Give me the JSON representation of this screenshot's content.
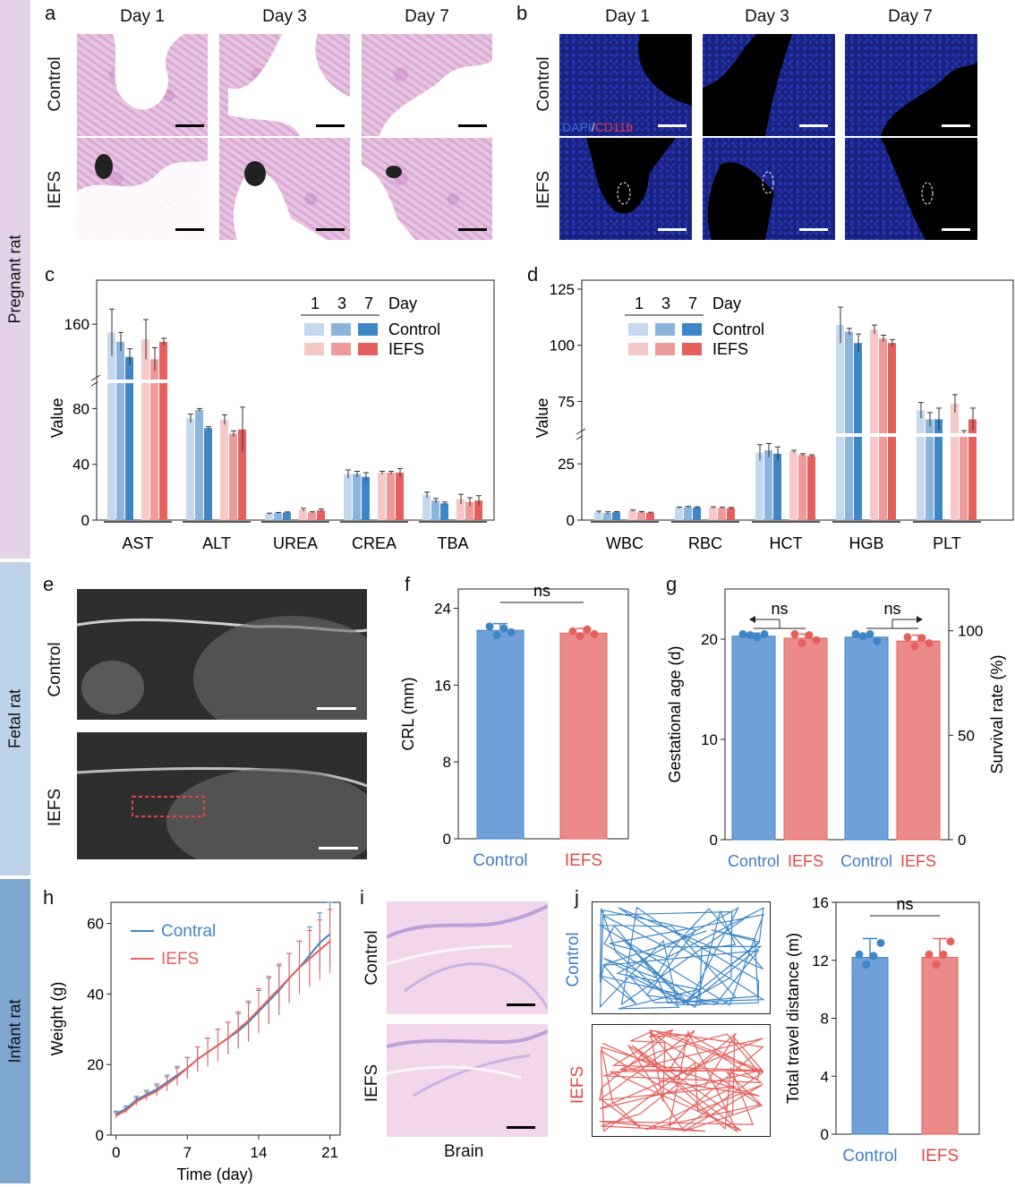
{
  "sections": {
    "pregnant": "Pregnant rat",
    "fetal": "Fetal rat",
    "infant": "Infant rat"
  },
  "panel_a": {
    "label": "a",
    "cols": [
      "Day 1",
      "Day 3",
      "Day 7"
    ],
    "rows": [
      "Control",
      "IEFS"
    ]
  },
  "panel_b": {
    "label": "b",
    "cols": [
      "Day 1",
      "Day 3",
      "Day 7"
    ],
    "rows": [
      "Control",
      "IEFS"
    ],
    "stain_dapi": "DAPI",
    "stain_sep": "/",
    "stain_cd11b": "CD11b"
  },
  "panel_e": {
    "label": "e",
    "rows": [
      "Control",
      "IEFS"
    ]
  },
  "panel_i": {
    "label": "i",
    "rows": [
      "Control",
      "IEFS"
    ],
    "caption": "Brain"
  },
  "panel_j_tracks": {
    "label": "j",
    "rows": [
      "Control",
      "IEFS"
    ]
  },
  "colors": {
    "control": [
      "#c5d9ee",
      "#8db4dd",
      "#3f86c6"
    ],
    "iefs": [
      "#f6c8c8",
      "#ee9a9a",
      "#e5605c"
    ],
    "control_bar": "#6fa0d8",
    "iefs_bar": "#ec8a8a",
    "control_text": "#3f7fc4",
    "iefs_text": "#e04a4a"
  },
  "chart_data": [
    {
      "id": "c",
      "label": "c",
      "type": "bar",
      "ylabel": "Value",
      "yticks_lower": [
        "0",
        "40",
        "80"
      ],
      "yticks_upper": [
        "160"
      ],
      "broken_axis": {
        "lower": [
          0,
          95
        ],
        "upper": [
          115,
          190
        ]
      },
      "legend": {
        "days": [
          "1",
          "3",
          "7"
        ],
        "day_label": "Day",
        "series": [
          "Control",
          "IEFS"
        ]
      },
      "categories": [
        "AST",
        "ALT",
        "UREA",
        "CREA",
        "TBA"
      ],
      "series": [
        {
          "name": "Control Day 1",
          "values": [
            153,
            73,
            4.5,
            33,
            18
          ],
          "errors": [
            20,
            3,
            0.5,
            3,
            2
          ]
        },
        {
          "name": "Control Day 3",
          "values": [
            145,
            79,
            5,
            33,
            14
          ],
          "errors": [
            8,
            1,
            0.5,
            2,
            1.5
          ]
        },
        {
          "name": "Control Day 7",
          "values": [
            132,
            66,
            5.5,
            31,
            12
          ],
          "errors": [
            7,
            1,
            0.4,
            3,
            1
          ]
        },
        {
          "name": "IEFS Day 1",
          "values": [
            147,
            72,
            7.5,
            34,
            15
          ],
          "errors": [
            17,
            3.5,
            1,
            1,
            3.5
          ]
        },
        {
          "name": "IEFS Day 3",
          "values": [
            130,
            62,
            5.5,
            34,
            13
          ],
          "errors": [
            10,
            2,
            0.5,
            1,
            3
          ]
        },
        {
          "name": "IEFS Day 7",
          "values": [
            145,
            65,
            7,
            34,
            14
          ],
          "errors": [
            3,
            16,
            1,
            3,
            3.5
          ]
        }
      ]
    },
    {
      "id": "d",
      "label": "d",
      "type": "bar",
      "ylabel": "Value",
      "yticks_lower": [
        "0",
        "25"
      ],
      "yticks_upper": [
        "75",
        "100",
        "125"
      ],
      "broken_axis": {
        "lower": [
          0,
          35
        ],
        "upper": [
          62,
          125
        ]
      },
      "legend": {
        "days": [
          "1",
          "3",
          "7"
        ],
        "day_label": "Day",
        "series": [
          "Control",
          "IEFS"
        ]
      },
      "categories": [
        "WBC",
        "RBC",
        "HCT",
        "HGB",
        "PLT"
      ],
      "series": [
        {
          "name": "Control Day 1",
          "values": [
            3.5,
            5.5,
            30,
            109,
            71
          ],
          "errors": [
            0.5,
            0.3,
            3.5,
            8,
            3.5
          ]
        },
        {
          "name": "Control Day 3",
          "values": [
            3.2,
            5.8,
            31,
            106,
            67
          ],
          "errors": [
            0.5,
            0.3,
            3,
            1.5,
            3
          ]
        },
        {
          "name": "Control Day 7",
          "values": [
            3.5,
            5.6,
            29.5,
            101,
            67
          ],
          "errors": [
            0.3,
            0.3,
            3,
            4,
            5
          ]
        },
        {
          "name": "IEFS Day 1",
          "values": [
            4.2,
            5.6,
            30.5,
            107,
            74
          ],
          "errors": [
            0.3,
            0.3,
            0.5,
            2,
            4
          ]
        },
        {
          "name": "IEFS Day 3",
          "values": [
            3.5,
            5.4,
            29,
            103,
            61
          ],
          "errors": [
            0.3,
            0.3,
            0.5,
            1.5,
            1
          ]
        },
        {
          "name": "IEFS Day 7",
          "values": [
            3.2,
            5.3,
            28.5,
            101,
            67
          ],
          "errors": [
            0.3,
            0.3,
            0.5,
            1.5,
            5
          ]
        }
      ]
    },
    {
      "id": "f",
      "label": "f",
      "type": "bar",
      "ylabel": "CRL (mm)",
      "ylim": [
        0,
        26
      ],
      "yticks": [
        "0",
        "8",
        "16",
        "24"
      ],
      "categories": [
        "Control",
        "IEFS"
      ],
      "values": [
        21.7,
        21.4
      ],
      "errors": [
        0.7,
        0.5
      ],
      "points": [
        [
          22.1,
          21.2,
          21.9,
          21.5
        ],
        [
          21.6,
          21.1,
          21.8,
          21.3
        ]
      ],
      "significance": "ns"
    },
    {
      "id": "g",
      "label": "g",
      "type": "bar",
      "ylabel": "Gestational age (d)",
      "ylabel_right": "Survival rate (%)",
      "ylim": [
        0,
        25
      ],
      "ylim_right": [
        0,
        120
      ],
      "yticks": [
        "0",
        "10",
        "20"
      ],
      "yticks_right": [
        "0",
        "50",
        "100"
      ],
      "categories": [
        "Control",
        "IEFS",
        "Control",
        "IEFS"
      ],
      "values": [
        20.3,
        20.1,
        20.2,
        19.8
      ],
      "errors": [
        0.3,
        0.4,
        0.3,
        0.6
      ],
      "points": [
        [
          20.5,
          20.4,
          20.2,
          20.5
        ],
        [
          20.5,
          19.6,
          20.4,
          19.9
        ],
        [
          20.5,
          20.3,
          20.5,
          19.8
        ],
        [
          20.2,
          19.3,
          20.1,
          19.6
        ]
      ],
      "significance": [
        "ns",
        "ns"
      ]
    },
    {
      "id": "h",
      "label": "h",
      "type": "line",
      "xlabel": "Time (day)",
      "ylabel": "Weight (g)",
      "xlim": [
        -0.5,
        22
      ],
      "ylim": [
        0,
        66
      ],
      "xticks": [
        "0",
        "7",
        "14",
        "21"
      ],
      "yticks": [
        "0",
        "20",
        "40",
        "60"
      ],
      "series": [
        {
          "name": "Contral",
          "x": [
            0,
            1,
            2,
            3,
            4,
            5,
            6,
            7,
            8,
            9,
            10,
            11,
            12,
            13,
            14,
            15,
            16,
            17,
            18,
            19,
            20,
            21
          ],
          "values": [
            6,
            7.5,
            10,
            11.5,
            13,
            15,
            17,
            19,
            21.5,
            23.5,
            25.5,
            27.5,
            29.5,
            32,
            35,
            38,
            41,
            44.5,
            47.5,
            51,
            54.5,
            57
          ],
          "errors": [
            0.8,
            0.8,
            1,
            1.2,
            1.5,
            2,
            2.5,
            3,
            3.5,
            4,
            4.5,
            4.5,
            5,
            5.5,
            6,
            6.5,
            7,
            7,
            7.5,
            8,
            8.5,
            9
          ]
        },
        {
          "name": "IEFS",
          "x": [
            0,
            1,
            2,
            3,
            4,
            5,
            6,
            7,
            8,
            9,
            10,
            11,
            12,
            13,
            14,
            15,
            16,
            17,
            18,
            19,
            20,
            21
          ],
          "values": [
            5.5,
            7,
            9.5,
            11,
            12.5,
            14.5,
            16.5,
            19,
            21.5,
            23.5,
            25.5,
            27.5,
            30,
            32.5,
            35.5,
            38.5,
            41.5,
            44.5,
            47.5,
            50,
            52.5,
            55
          ],
          "errors": [
            0.8,
            0.8,
            1,
            1.2,
            1.5,
            2,
            2.5,
            3,
            3.5,
            4,
            4.5,
            4.5,
            5,
            5.5,
            6,
            6.5,
            7,
            7,
            7.5,
            8,
            8.5,
            9
          ]
        }
      ]
    },
    {
      "id": "j",
      "type": "bar",
      "ylabel": "Total travel distance (m)",
      "ylim": [
        0,
        16
      ],
      "yticks": [
        "0",
        "4",
        "8",
        "12",
        "16"
      ],
      "categories": [
        "Control",
        "IEFS"
      ],
      "values": [
        12.2,
        12.2
      ],
      "errors": [
        1.3,
        1.3
      ],
      "points": [
        [
          12.4,
          11.7,
          12.3,
          13.2
        ],
        [
          12.4,
          11.7,
          12.4,
          13.3
        ]
      ],
      "significance": "ns"
    }
  ]
}
